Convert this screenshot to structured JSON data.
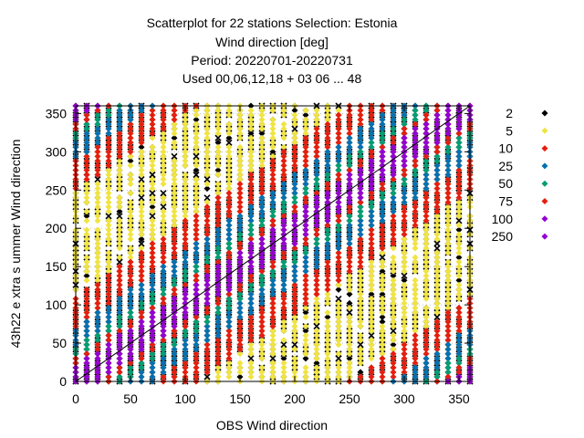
{
  "chart_data": {
    "type": "scatter",
    "title_lines": [
      "Scatterplot for   22 stations Selection: Estonia",
      "Wind direction [deg]",
      "Period: 20220701-20220731",
      "Used  00,06,12,18  + 03 06 ... 48"
    ],
    "xlabel": "OBS Wind direction",
    "ylabel": "43h22 e xtra s ummer Wind direction",
    "xlim": [
      0,
      360
    ],
    "ylim": [
      0,
      360
    ],
    "xticks": [
      0,
      50,
      100,
      150,
      200,
      250,
      300,
      350
    ],
    "yticks": [
      0,
      50,
      100,
      150,
      200,
      250,
      300,
      350
    ],
    "grid": true,
    "diagonal_line": true,
    "legend_position": "right",
    "legend": [
      {
        "label": "2",
        "color": "#000000"
      },
      {
        "label": "5",
        "color": "#f0e442"
      },
      {
        "label": "10",
        "color": "#e51e10"
      },
      {
        "label": "25",
        "color": "#0072b2"
      },
      {
        "label": "50",
        "color": "#009e73"
      },
      {
        "label": "75",
        "color": "#e51e10"
      },
      {
        "label": "100",
        "color": "#9400d3"
      },
      {
        "label": "250",
        "color": "#9400d3"
      }
    ],
    "obs_columns": [
      0,
      10,
      20,
      30,
      40,
      50,
      60,
      70,
      80,
      90,
      100,
      110,
      120,
      130,
      140,
      150,
      160,
      170,
      180,
      190,
      200,
      210,
      220,
      230,
      240,
      250,
      260,
      270,
      280,
      290,
      300,
      310,
      320,
      330,
      340,
      350,
      360
    ],
    "density_bands": [
      {
        "class": "2",
        "offset_min": -360,
        "offset_max": 360
      },
      {
        "class": "5",
        "offset_min": -200,
        "offset_max": 200
      },
      {
        "class": "10",
        "offset_min": -110,
        "offset_max": 110
      },
      {
        "class": "25",
        "offset_min": -70,
        "offset_max": 70
      },
      {
        "class": "50",
        "offset_min": -45,
        "offset_max": 45
      },
      {
        "class": "75",
        "offset_min": -30,
        "offset_max": 30
      },
      {
        "class": "100",
        "offset_min": -20,
        "offset_max": 20
      }
    ]
  }
}
